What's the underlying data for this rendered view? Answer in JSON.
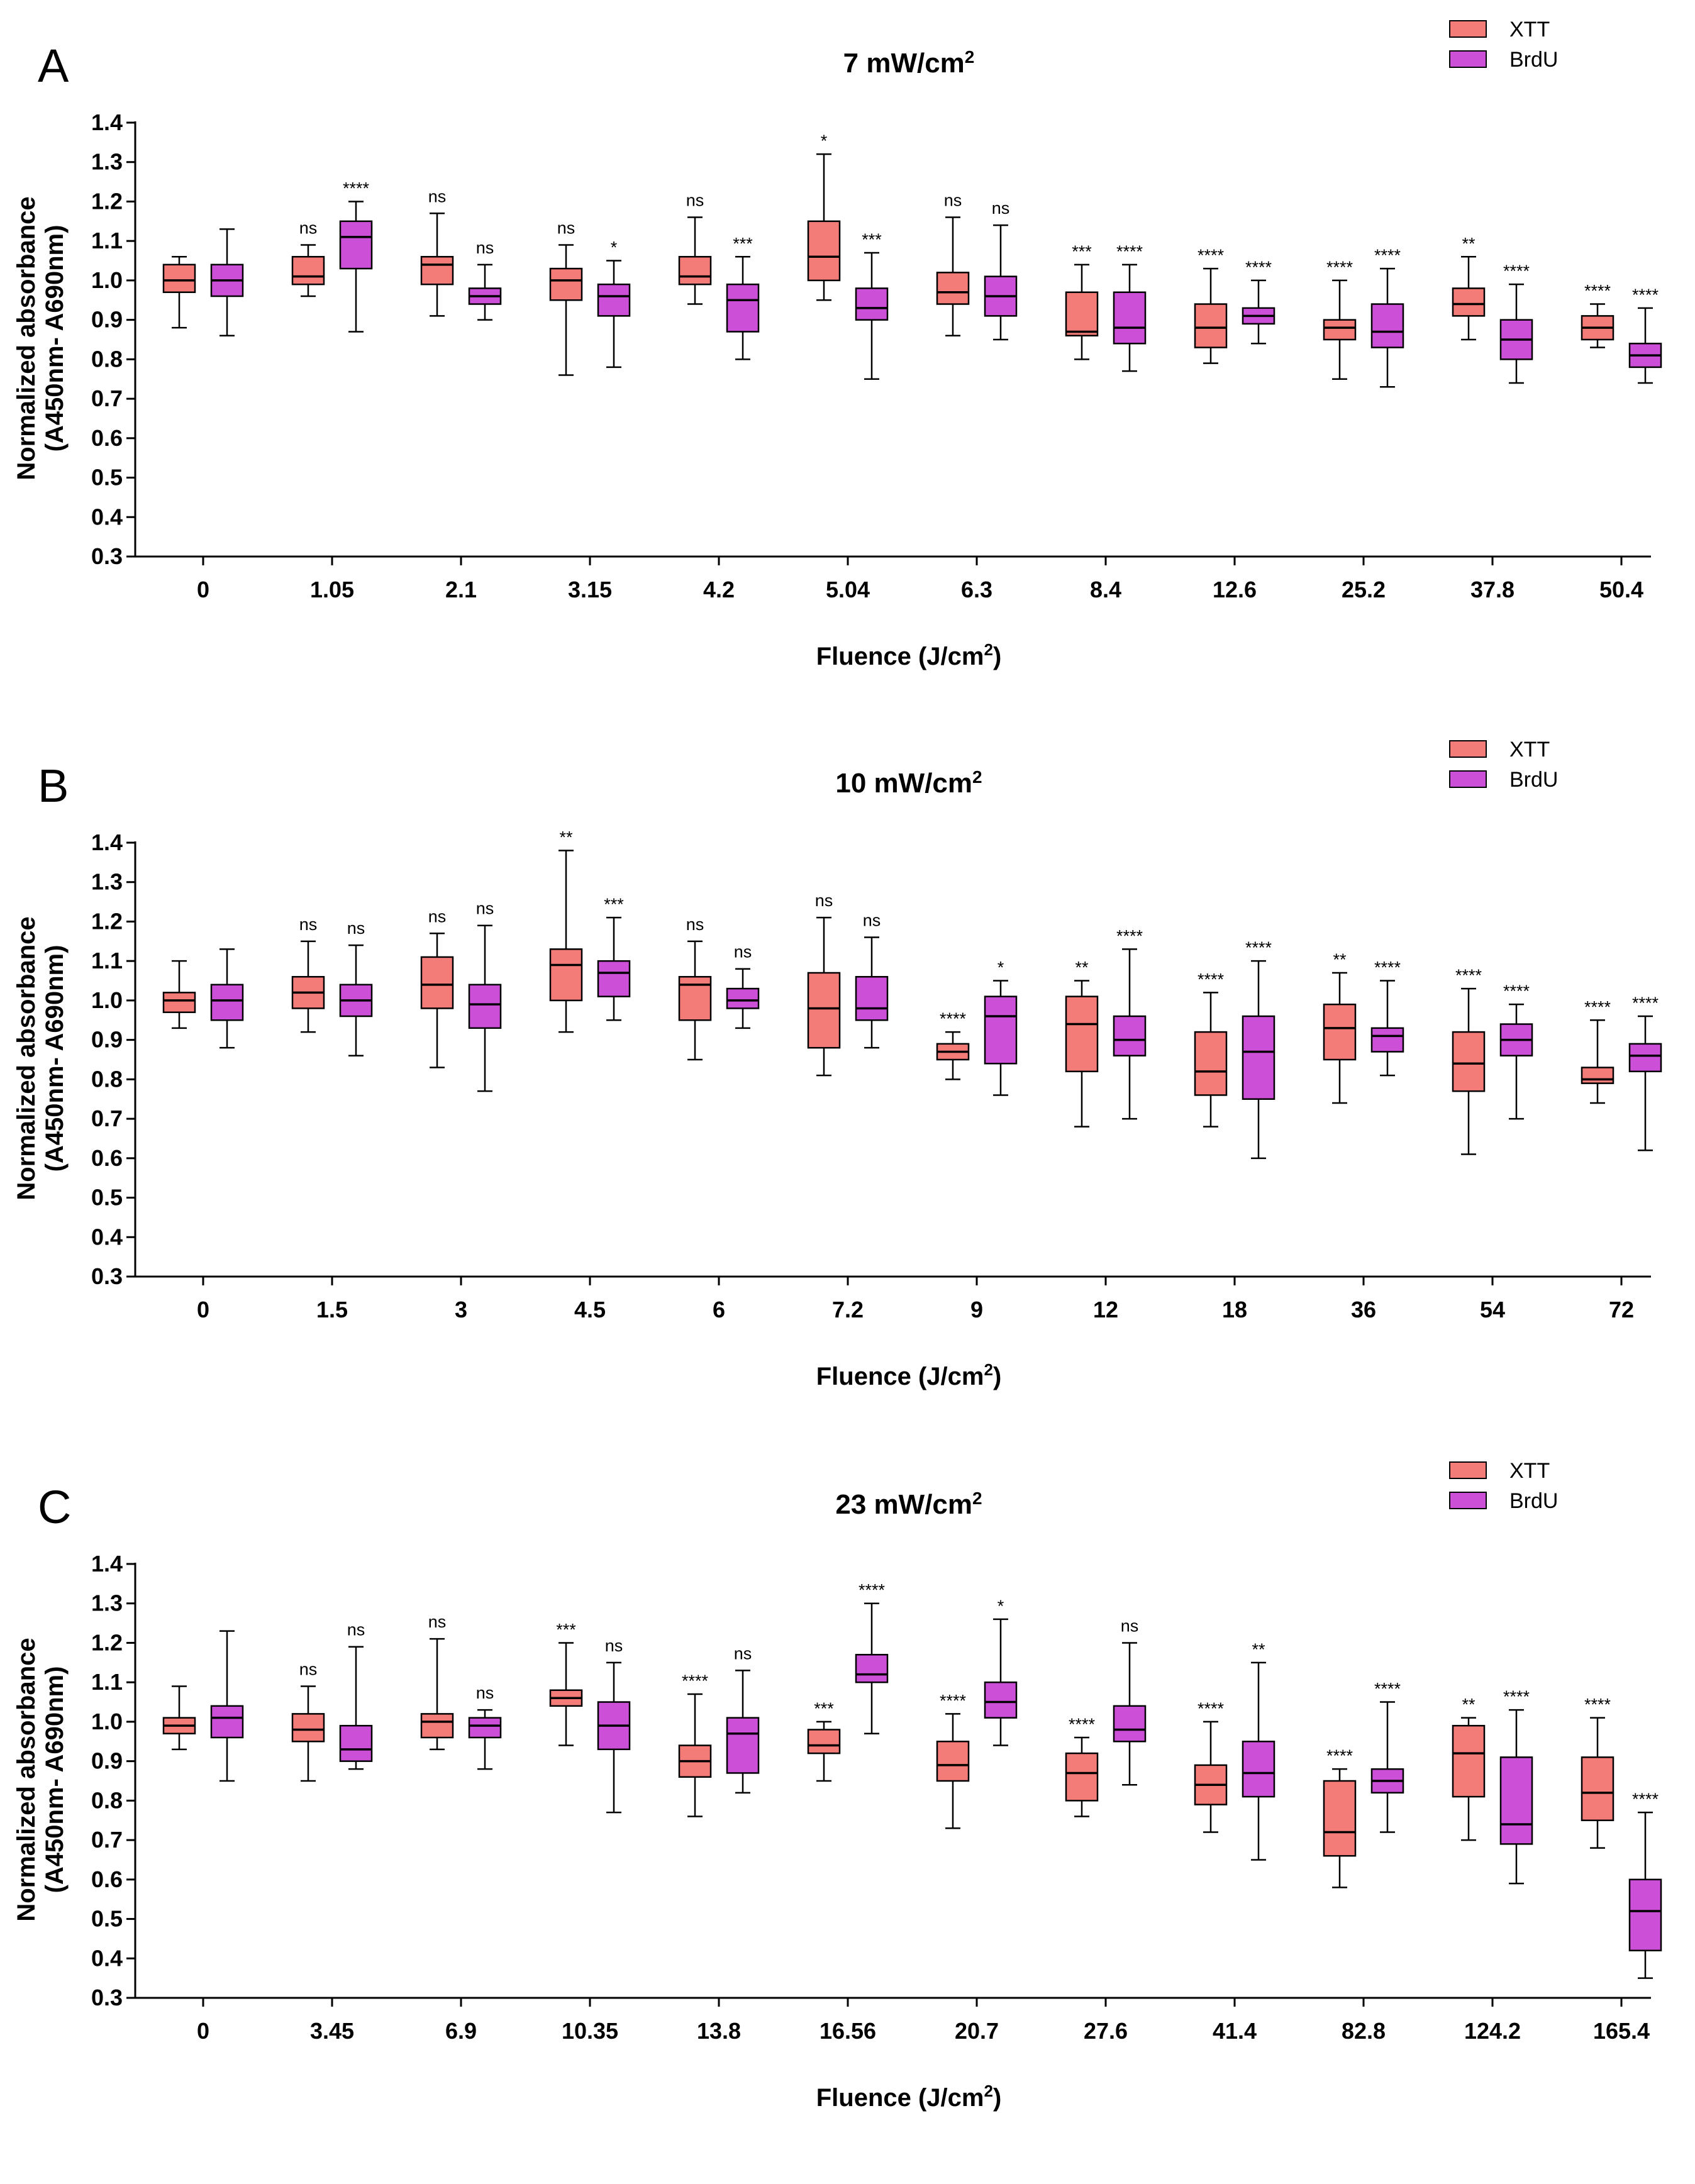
{
  "colors": {
    "xtt": "#F47C78",
    "brdu": "#CC4FD8",
    "stroke": "#000000"
  },
  "legend": {
    "xtt": "XTT",
    "brdu": "BrdU"
  },
  "chart_data": [
    {
      "type": "box",
      "panel": "A",
      "title": "7 mW/cm",
      "title_sup": "2",
      "xlabel": "Fluence (J/cm",
      "xlabel_sup": "2",
      "xlabel_end": ")",
      "ylabel_line1": "Normalized absorbance",
      "ylabel_line2": "(A450nm- A690nm)",
      "ylim": [
        0.3,
        1.4
      ],
      "yticks": [
        "0.3",
        "0.4",
        "0.5",
        "0.6",
        "0.7",
        "0.8",
        "0.9",
        "1.0",
        "1.1",
        "1.2",
        "1.3",
        "1.4"
      ],
      "categories": [
        "0",
        "1.05",
        "2.1",
        "3.15",
        "4.2",
        "5.04",
        "6.3",
        "8.4",
        "12.6",
        "25.2",
        "37.8",
        "50.4"
      ],
      "series": [
        {
          "name": "XTT",
          "boxes": [
            {
              "min": 0.88,
              "q1": 0.97,
              "median": 1.0,
              "q3": 1.04,
              "max": 1.06,
              "sig": ""
            },
            {
              "min": 0.96,
              "q1": 0.99,
              "median": 1.01,
              "q3": 1.06,
              "max": 1.09,
              "sig": "ns"
            },
            {
              "min": 0.91,
              "q1": 0.99,
              "median": 1.04,
              "q3": 1.06,
              "max": 1.17,
              "sig": "ns"
            },
            {
              "min": 0.76,
              "q1": 0.95,
              "median": 1.0,
              "q3": 1.03,
              "max": 1.09,
              "sig": "ns"
            },
            {
              "min": 0.94,
              "q1": 0.99,
              "median": 1.01,
              "q3": 1.06,
              "max": 1.16,
              "sig": "ns"
            },
            {
              "min": 0.95,
              "q1": 1.0,
              "median": 1.06,
              "q3": 1.15,
              "max": 1.32,
              "sig": "*"
            },
            {
              "min": 0.86,
              "q1": 0.94,
              "median": 0.97,
              "q3": 1.02,
              "max": 1.16,
              "sig": "ns"
            },
            {
              "min": 0.8,
              "q1": 0.86,
              "median": 0.87,
              "q3": 0.97,
              "max": 1.04,
              "sig": "***"
            },
            {
              "min": 0.79,
              "q1": 0.83,
              "median": 0.88,
              "q3": 0.94,
              "max": 1.03,
              "sig": "****"
            },
            {
              "min": 0.75,
              "q1": 0.85,
              "median": 0.88,
              "q3": 0.9,
              "max": 1.0,
              "sig": "****"
            },
            {
              "min": 0.85,
              "q1": 0.91,
              "median": 0.94,
              "q3": 0.98,
              "max": 1.06,
              "sig": "**"
            },
            {
              "min": 0.83,
              "q1": 0.85,
              "median": 0.88,
              "q3": 0.91,
              "max": 0.94,
              "sig": "****"
            }
          ]
        },
        {
          "name": "BrdU",
          "boxes": [
            {
              "min": 0.86,
              "q1": 0.96,
              "median": 1.0,
              "q3": 1.04,
              "max": 1.13,
              "sig": ""
            },
            {
              "min": 0.87,
              "q1": 1.03,
              "median": 1.11,
              "q3": 1.15,
              "max": 1.2,
              "sig": "****"
            },
            {
              "min": 0.9,
              "q1": 0.94,
              "median": 0.96,
              "q3": 0.98,
              "max": 1.04,
              "sig": "ns"
            },
            {
              "min": 0.78,
              "q1": 0.91,
              "median": 0.96,
              "q3": 0.99,
              "max": 1.05,
              "sig": "*"
            },
            {
              "min": 0.8,
              "q1": 0.87,
              "median": 0.95,
              "q3": 0.99,
              "max": 1.06,
              "sig": "***"
            },
            {
              "min": 0.75,
              "q1": 0.9,
              "median": 0.93,
              "q3": 0.98,
              "max": 1.07,
              "sig": "***"
            },
            {
              "min": 0.85,
              "q1": 0.91,
              "median": 0.96,
              "q3": 1.01,
              "max": 1.14,
              "sig": "ns"
            },
            {
              "min": 0.77,
              "q1": 0.84,
              "median": 0.88,
              "q3": 0.97,
              "max": 1.04,
              "sig": "****"
            },
            {
              "min": 0.84,
              "q1": 0.89,
              "median": 0.91,
              "q3": 0.93,
              "max": 1.0,
              "sig": "****"
            },
            {
              "min": 0.73,
              "q1": 0.83,
              "median": 0.87,
              "q3": 0.94,
              "max": 1.03,
              "sig": "****"
            },
            {
              "min": 0.74,
              "q1": 0.8,
              "median": 0.85,
              "q3": 0.9,
              "max": 0.99,
              "sig": "****"
            },
            {
              "min": 0.74,
              "q1": 0.78,
              "median": 0.81,
              "q3": 0.84,
              "max": 0.93,
              "sig": "****"
            }
          ]
        }
      ]
    },
    {
      "type": "box",
      "panel": "B",
      "title": "10 mW/cm",
      "title_sup": "2",
      "xlabel": "Fluence (J/cm",
      "xlabel_sup": "2",
      "xlabel_end": ")",
      "ylabel_line1": "Normalized absorbance",
      "ylabel_line2": "(A450nm- A690nm)",
      "ylim": [
        0.3,
        1.4
      ],
      "yticks": [
        "0.3",
        "0.4",
        "0.5",
        "0.6",
        "0.7",
        "0.8",
        "0.9",
        "1.0",
        "1.1",
        "1.2",
        "1.3",
        "1.4"
      ],
      "categories": [
        "0",
        "1.5",
        "3",
        "4.5",
        "6",
        "7.2",
        "9",
        "12",
        "18",
        "36",
        "54",
        "72"
      ],
      "series": [
        {
          "name": "XTT",
          "boxes": [
            {
              "min": 0.93,
              "q1": 0.97,
              "median": 1.0,
              "q3": 1.02,
              "max": 1.1,
              "sig": ""
            },
            {
              "min": 0.92,
              "q1": 0.98,
              "median": 1.02,
              "q3": 1.06,
              "max": 1.15,
              "sig": "ns"
            },
            {
              "min": 0.83,
              "q1": 0.98,
              "median": 1.04,
              "q3": 1.11,
              "max": 1.17,
              "sig": "ns"
            },
            {
              "min": 0.92,
              "q1": 1.0,
              "median": 1.09,
              "q3": 1.13,
              "max": 1.38,
              "sig": "**"
            },
            {
              "min": 0.85,
              "q1": 0.95,
              "median": 1.04,
              "q3": 1.06,
              "max": 1.15,
              "sig": "ns"
            },
            {
              "min": 0.81,
              "q1": 0.88,
              "median": 0.98,
              "q3": 1.07,
              "max": 1.21,
              "sig": "ns"
            },
            {
              "min": 0.8,
              "q1": 0.85,
              "median": 0.87,
              "q3": 0.89,
              "max": 0.92,
              "sig": "****"
            },
            {
              "min": 0.68,
              "q1": 0.82,
              "median": 0.94,
              "q3": 1.01,
              "max": 1.05,
              "sig": "**"
            },
            {
              "min": 0.68,
              "q1": 0.76,
              "median": 0.82,
              "q3": 0.92,
              "max": 1.02,
              "sig": "****"
            },
            {
              "min": 0.74,
              "q1": 0.85,
              "median": 0.93,
              "q3": 0.99,
              "max": 1.07,
              "sig": "**"
            },
            {
              "min": 0.61,
              "q1": 0.77,
              "median": 0.84,
              "q3": 0.92,
              "max": 1.03,
              "sig": "****"
            },
            {
              "min": 0.74,
              "q1": 0.79,
              "median": 0.8,
              "q3": 0.83,
              "max": 0.95,
              "sig": "****"
            }
          ]
        },
        {
          "name": "BrdU",
          "boxes": [
            {
              "min": 0.88,
              "q1": 0.95,
              "median": 1.0,
              "q3": 1.04,
              "max": 1.13,
              "sig": ""
            },
            {
              "min": 0.86,
              "q1": 0.96,
              "median": 1.0,
              "q3": 1.04,
              "max": 1.14,
              "sig": "ns"
            },
            {
              "min": 0.77,
              "q1": 0.93,
              "median": 0.99,
              "q3": 1.04,
              "max": 1.19,
              "sig": "ns"
            },
            {
              "min": 0.95,
              "q1": 1.01,
              "median": 1.07,
              "q3": 1.1,
              "max": 1.21,
              "sig": "***"
            },
            {
              "min": 0.93,
              "q1": 0.98,
              "median": 1.0,
              "q3": 1.03,
              "max": 1.08,
              "sig": "ns"
            },
            {
              "min": 0.88,
              "q1": 0.95,
              "median": 0.98,
              "q3": 1.06,
              "max": 1.16,
              "sig": "ns"
            },
            {
              "min": 0.76,
              "q1": 0.84,
              "median": 0.96,
              "q3": 1.01,
              "max": 1.05,
              "sig": "*"
            },
            {
              "min": 0.7,
              "q1": 0.86,
              "median": 0.9,
              "q3": 0.96,
              "max": 1.13,
              "sig": "****"
            },
            {
              "min": 0.6,
              "q1": 0.75,
              "median": 0.87,
              "q3": 0.96,
              "max": 1.1,
              "sig": "****"
            },
            {
              "min": 0.81,
              "q1": 0.87,
              "median": 0.91,
              "q3": 0.93,
              "max": 1.05,
              "sig": "****"
            },
            {
              "min": 0.7,
              "q1": 0.86,
              "median": 0.9,
              "q3": 0.94,
              "max": 0.99,
              "sig": "****"
            },
            {
              "min": 0.62,
              "q1": 0.82,
              "median": 0.86,
              "q3": 0.89,
              "max": 0.96,
              "sig": "****"
            }
          ]
        }
      ]
    },
    {
      "type": "box",
      "panel": "C",
      "title": "23 mW/cm",
      "title_sup": "2",
      "xlabel": "Fluence (J/cm",
      "xlabel_sup": "2",
      "xlabel_end": ")",
      "ylabel_line1": "Normalized absorbance",
      "ylabel_line2": "(A450nm- A690nm)",
      "ylim": [
        0.3,
        1.4
      ],
      "yticks": [
        "0.3",
        "0.4",
        "0.5",
        "0.6",
        "0.7",
        "0.8",
        "0.9",
        "1.0",
        "1.1",
        "1.2",
        "1.3",
        "1.4"
      ],
      "categories": [
        "0",
        "3.45",
        "6.9",
        "10.35",
        "13.8",
        "16.56",
        "20.7",
        "27.6",
        "41.4",
        "82.8",
        "124.2",
        "165.4"
      ],
      "series": [
        {
          "name": "XTT",
          "boxes": [
            {
              "min": 0.93,
              "q1": 0.97,
              "median": 0.99,
              "q3": 1.01,
              "max": 1.09,
              "sig": ""
            },
            {
              "min": 0.85,
              "q1": 0.95,
              "median": 0.98,
              "q3": 1.02,
              "max": 1.09,
              "sig": "ns"
            },
            {
              "min": 0.93,
              "q1": 0.96,
              "median": 1.0,
              "q3": 1.02,
              "max": 1.21,
              "sig": "ns"
            },
            {
              "min": 0.94,
              "q1": 1.04,
              "median": 1.06,
              "q3": 1.08,
              "max": 1.2,
              "sig": "***"
            },
            {
              "min": 0.76,
              "q1": 0.86,
              "median": 0.9,
              "q3": 0.94,
              "max": 1.07,
              "sig": "****"
            },
            {
              "min": 0.85,
              "q1": 0.92,
              "median": 0.94,
              "q3": 0.98,
              "max": 1.0,
              "sig": "***"
            },
            {
              "min": 0.73,
              "q1": 0.85,
              "median": 0.89,
              "q3": 0.95,
              "max": 1.02,
              "sig": "****"
            },
            {
              "min": 0.76,
              "q1": 0.8,
              "median": 0.87,
              "q3": 0.92,
              "max": 0.96,
              "sig": "****"
            },
            {
              "min": 0.72,
              "q1": 0.79,
              "median": 0.84,
              "q3": 0.89,
              "max": 1.0,
              "sig": "****"
            },
            {
              "min": 0.58,
              "q1": 0.66,
              "median": 0.72,
              "q3": 0.85,
              "max": 0.88,
              "sig": "****"
            },
            {
              "min": 0.7,
              "q1": 0.81,
              "median": 0.92,
              "q3": 0.99,
              "max": 1.01,
              "sig": "**"
            },
            {
              "min": 0.68,
              "q1": 0.75,
              "median": 0.82,
              "q3": 0.91,
              "max": 1.01,
              "sig": "****"
            }
          ]
        },
        {
          "name": "BrdU",
          "boxes": [
            {
              "min": 0.85,
              "q1": 0.96,
              "median": 1.01,
              "q3": 1.04,
              "max": 1.23,
              "sig": ""
            },
            {
              "min": 0.88,
              "q1": 0.9,
              "median": 0.93,
              "q3": 0.99,
              "max": 1.19,
              "sig": "ns"
            },
            {
              "min": 0.88,
              "q1": 0.96,
              "median": 0.99,
              "q3": 1.01,
              "max": 1.03,
              "sig": "ns"
            },
            {
              "min": 0.77,
              "q1": 0.93,
              "median": 0.99,
              "q3": 1.05,
              "max": 1.15,
              "sig": "ns"
            },
            {
              "min": 0.82,
              "q1": 0.87,
              "median": 0.97,
              "q3": 1.01,
              "max": 1.13,
              "sig": "ns"
            },
            {
              "min": 0.97,
              "q1": 1.1,
              "median": 1.12,
              "q3": 1.17,
              "max": 1.3,
              "sig": "****"
            },
            {
              "min": 0.94,
              "q1": 1.01,
              "median": 1.05,
              "q3": 1.1,
              "max": 1.26,
              "sig": "*"
            },
            {
              "min": 0.84,
              "q1": 0.95,
              "median": 0.98,
              "q3": 1.04,
              "max": 1.2,
              "sig": "ns"
            },
            {
              "min": 0.65,
              "q1": 0.81,
              "median": 0.87,
              "q3": 0.95,
              "max": 1.15,
              "sig": "**"
            },
            {
              "min": 0.72,
              "q1": 0.82,
              "median": 0.85,
              "q3": 0.88,
              "max": 1.05,
              "sig": "****"
            },
            {
              "min": 0.59,
              "q1": 0.69,
              "median": 0.74,
              "q3": 0.91,
              "max": 1.03,
              "sig": "****"
            },
            {
              "min": 0.35,
              "q1": 0.42,
              "median": 0.52,
              "q3": 0.6,
              "max": 0.77,
              "sig": "****"
            }
          ]
        }
      ]
    }
  ]
}
